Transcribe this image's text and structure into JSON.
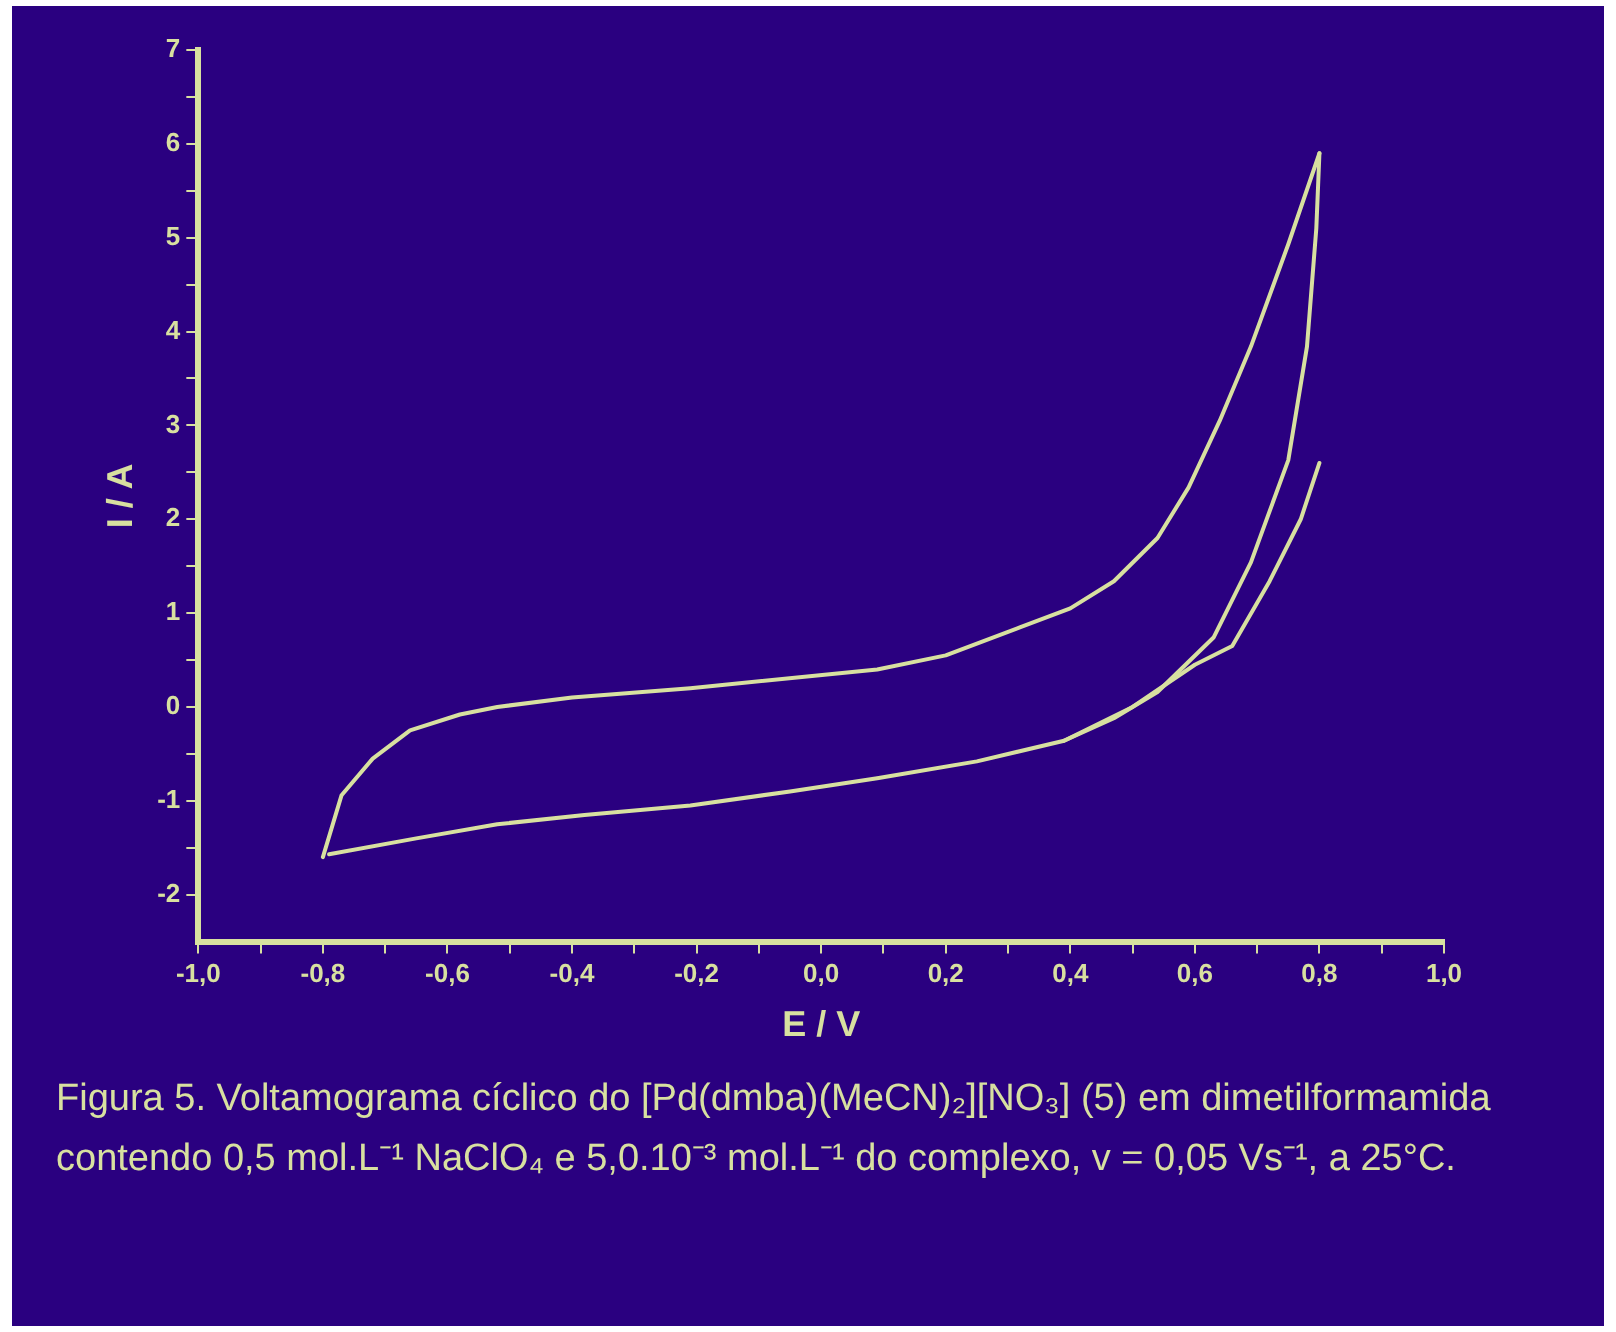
{
  "chart_data": {
    "type": "line",
    "xlabel": "E / V",
    "ylabel": "I / A",
    "xlim": [
      -1.0,
      1.0
    ],
    "xticks": [
      {
        "value": -1.0,
        "label": "-1,0"
      },
      {
        "value": -0.9,
        "label": null
      },
      {
        "value": -0.8,
        "label": "-0,8"
      },
      {
        "value": -0.7,
        "label": null
      },
      {
        "value": -0.6,
        "label": "-0,6"
      },
      {
        "value": -0.5,
        "label": null
      },
      {
        "value": -0.4,
        "label": "-0,4"
      },
      {
        "value": -0.3,
        "label": null
      },
      {
        "value": -0.2,
        "label": "-0,2"
      },
      {
        "value": -0.1,
        "label": null
      },
      {
        "value": 0,
        "label": "0,0"
      },
      {
        "value": 0.1,
        "label": null
      },
      {
        "value": 0.2,
        "label": "0,2"
      },
      {
        "value": 0.3,
        "label": null
      },
      {
        "value": 0.4,
        "label": "0,4"
      },
      {
        "value": 0.5,
        "label": null
      },
      {
        "value": 0.6,
        "label": "0,6"
      },
      {
        "value": 0.7,
        "label": null
      },
      {
        "value": 0.8,
        "label": "0,8"
      },
      {
        "value": 0.9,
        "label": null
      },
      {
        "value": 1.0,
        "label": "1,0"
      }
    ],
    "ylim": [
      -2.5,
      7
    ],
    "yticks": [
      -2,
      {
        "value": -1.5,
        "label": null
      },
      -1,
      {
        "value": -0.5,
        "label": null
      },
      0,
      {
        "value": 0.5,
        "label": null
      },
      1,
      {
        "value": 1.5,
        "label": null
      },
      2,
      {
        "value": 2.5,
        "label": null
      },
      3,
      {
        "value": 3.5,
        "label": null
      },
      4,
      {
        "value": 4.5,
        "label": null
      },
      5,
      {
        "value": 5.5,
        "label": null
      },
      6,
      {
        "value": 6.5,
        "label": null
      },
      7
    ],
    "grid": false,
    "legend": false,
    "marker": "none",
    "line_style": "solid",
    "series": [
      {
        "color": "#d8e0a0",
        "x": [
          -0.8,
          -0.77,
          -0.72,
          -0.66,
          -0.58,
          -0.52,
          -0.4,
          -0.21,
          0.09,
          0.2,
          0.32,
          0.4,
          0.47,
          0.54,
          0.59,
          0.64,
          0.69,
          0.75,
          0.8
        ],
        "values": [
          -1.6,
          -0.94,
          -0.55,
          -0.25,
          -0.08,
          0.0,
          0.1,
          0.2,
          0.4,
          0.55,
          0.85,
          1.05,
          1.34,
          1.8,
          2.34,
          3.05,
          3.84,
          4.93,
          5.9
        ]
      },
      {
        "color": "#d8e0a0",
        "x": [
          0.8,
          0.795,
          0.78,
          0.75,
          0.69,
          0.63,
          0.54,
          0.47,
          0.39,
          0.25,
          0.09,
          -0.05,
          -0.21,
          -0.38,
          -0.52,
          -0.65,
          -0.79
        ],
        "values": [
          5.9,
          5.1,
          3.84,
          2.63,
          1.54,
          0.74,
          0.16,
          -0.12,
          -0.36,
          -0.58,
          -0.76,
          -0.9,
          -1.05,
          -1.15,
          -1.25,
          -1.4,
          -1.57
        ]
      },
      {
        "color": "#d8e0a0",
        "x": [
          0.39,
          0.5,
          0.6,
          0.66,
          0.72,
          0.77,
          0.8
        ],
        "values": [
          -0.36,
          0.0,
          0.45,
          0.65,
          1.34,
          2.0,
          2.6
        ]
      }
    ],
    "annotations": [
      "Figura 5. Voltamograma cíclico do [Pd(dmba)(MeCN)₂][NO₃] (5) em dimetilformamida contendo 0,5 mol.L⁻¹ NaClO₄ e 5,0.10⁻³ mol.L⁻¹ do complexo, v = 0,05 Vs⁻¹, a 25°C."
    ]
  }
}
